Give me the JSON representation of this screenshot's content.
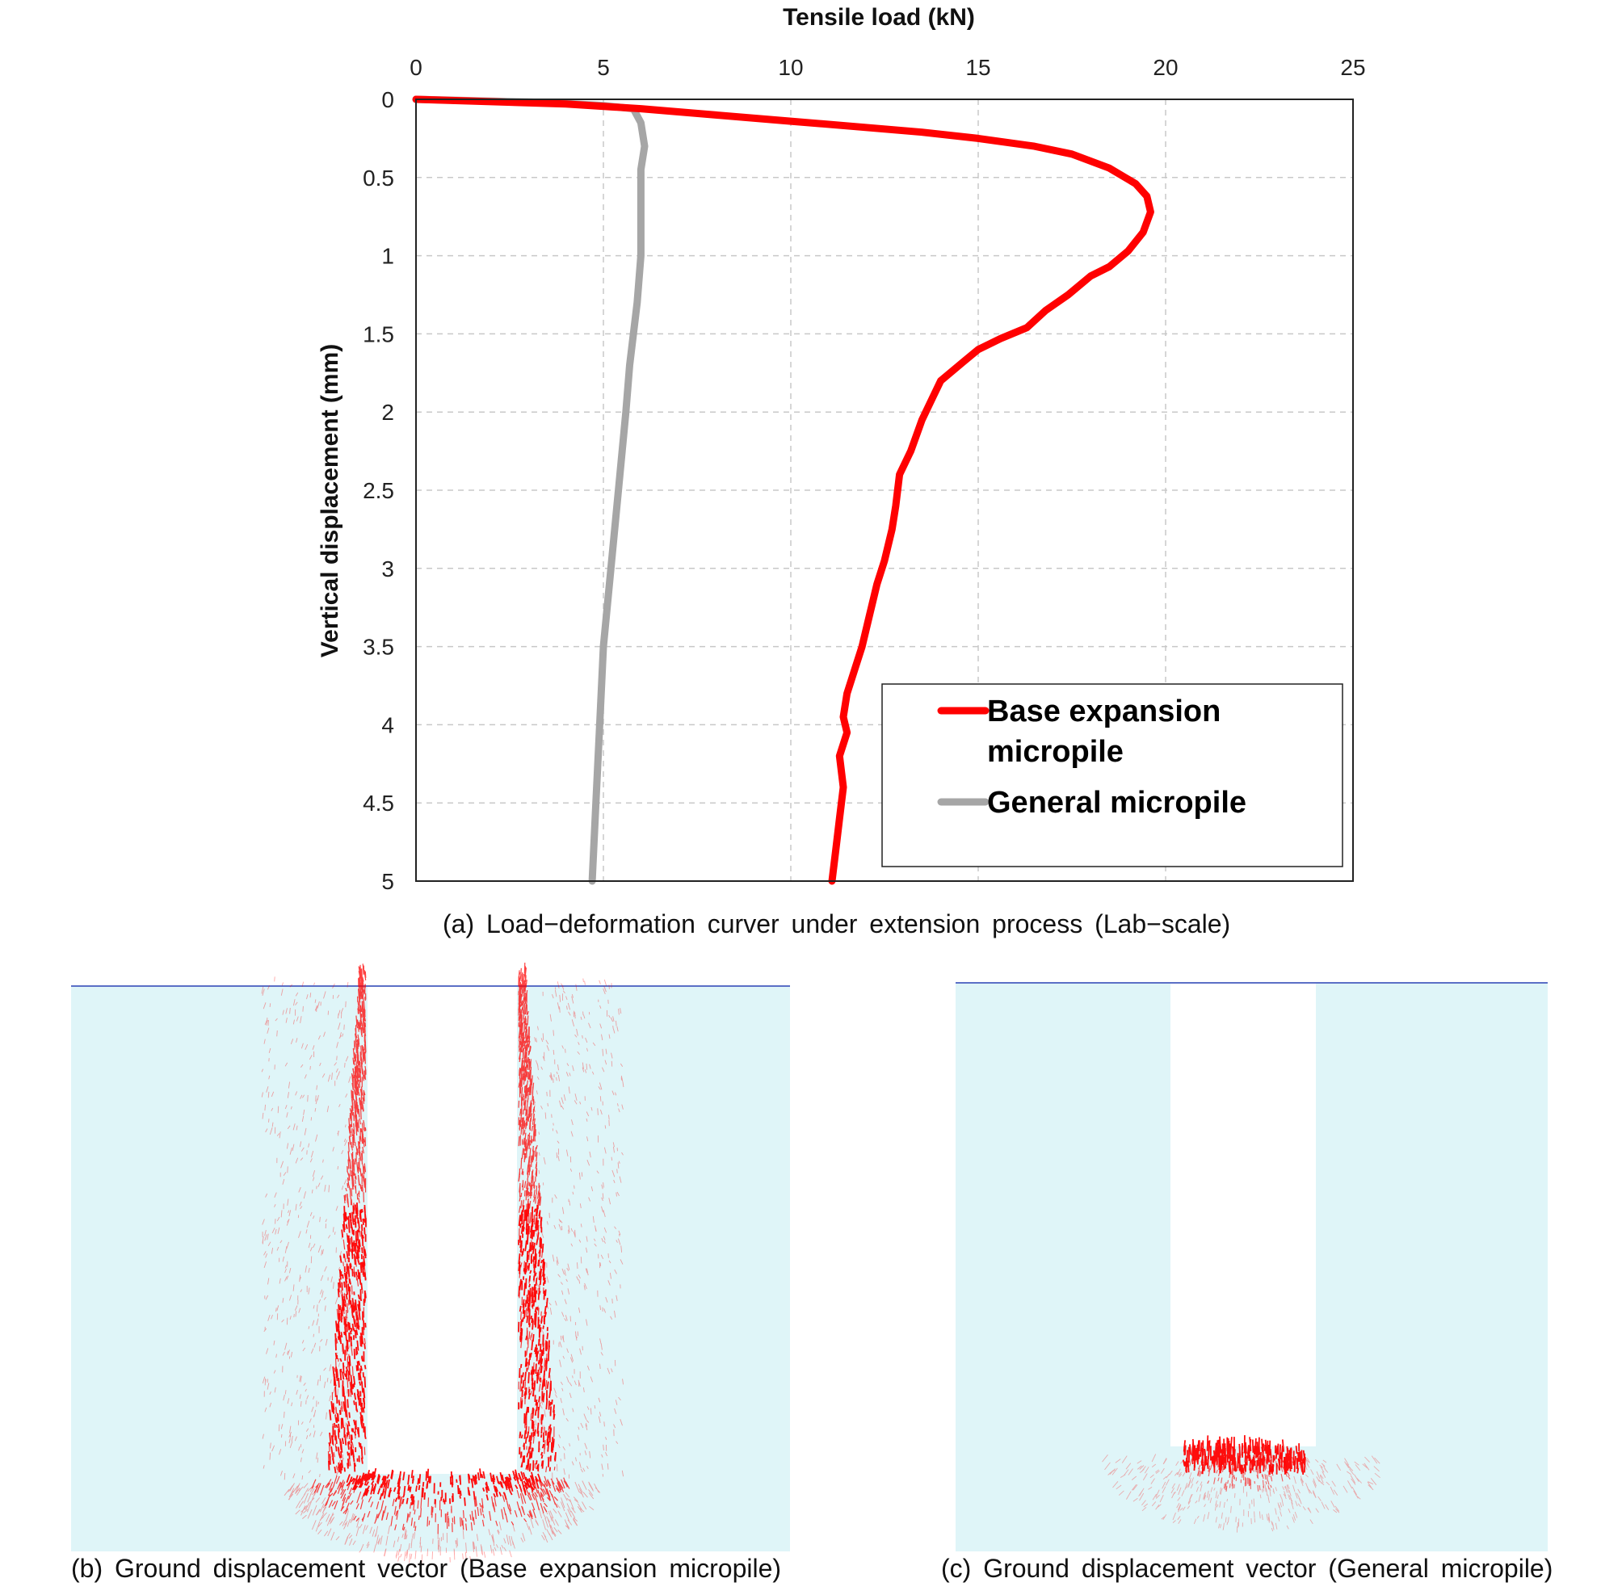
{
  "chart_data": {
    "type": "line",
    "title": "",
    "xlabel": "Tensile load (kN)",
    "ylabel": "Vertical displacement (mm)",
    "xlim": [
      0,
      25
    ],
    "ylim": [
      0,
      5
    ],
    "y_inverted": true,
    "x_axis_position": "top",
    "x_ticks": [
      0,
      5,
      10,
      15,
      20,
      25
    ],
    "y_ticks": [
      0,
      0.5,
      1,
      1.5,
      2,
      2.5,
      3,
      3.5,
      4,
      4.5,
      5
    ],
    "grid": true,
    "legend": "bottom-right",
    "series": [
      {
        "name": "Base expansion micropile",
        "color": "#ff0000",
        "points": [
          [
            0,
            0
          ],
          [
            4,
            0.03
          ],
          [
            6,
            0.06
          ],
          [
            8,
            0.1
          ],
          [
            10,
            0.14
          ],
          [
            12,
            0.18
          ],
          [
            13.5,
            0.21
          ],
          [
            15,
            0.25
          ],
          [
            16.5,
            0.3
          ],
          [
            17.5,
            0.35
          ],
          [
            18.5,
            0.44
          ],
          [
            19.2,
            0.54
          ],
          [
            19.5,
            0.62
          ],
          [
            19.6,
            0.72
          ],
          [
            19.4,
            0.85
          ],
          [
            19.0,
            0.97
          ],
          [
            18.5,
            1.07
          ],
          [
            18.0,
            1.13
          ],
          [
            17.4,
            1.25
          ],
          [
            16.8,
            1.35
          ],
          [
            16.3,
            1.46
          ],
          [
            15.6,
            1.53
          ],
          [
            15.0,
            1.6
          ],
          [
            14.6,
            1.68
          ],
          [
            14.0,
            1.8
          ],
          [
            13.8,
            1.9
          ],
          [
            13.5,
            2.05
          ],
          [
            13.2,
            2.25
          ],
          [
            12.9,
            2.4
          ],
          [
            12.8,
            2.6
          ],
          [
            12.7,
            2.75
          ],
          [
            12.5,
            2.95
          ],
          [
            12.3,
            3.1
          ],
          [
            12.1,
            3.3
          ],
          [
            11.9,
            3.5
          ],
          [
            11.7,
            3.65
          ],
          [
            11.5,
            3.8
          ],
          [
            11.4,
            3.95
          ],
          [
            11.5,
            4.05
          ],
          [
            11.3,
            4.2
          ],
          [
            11.4,
            4.4
          ],
          [
            11.3,
            4.6
          ],
          [
            11.2,
            4.8
          ],
          [
            11.1,
            5.0
          ]
        ]
      },
      {
        "name": "General micropile",
        "color": "#a6a6a6",
        "points": [
          [
            0,
            0
          ],
          [
            3.5,
            0.02
          ],
          [
            5,
            0.04
          ],
          [
            5.8,
            0.06
          ],
          [
            6.0,
            0.15
          ],
          [
            6.1,
            0.3
          ],
          [
            6.0,
            0.45
          ],
          [
            6.0,
            0.7
          ],
          [
            6.0,
            1.0
          ],
          [
            5.9,
            1.3
          ],
          [
            5.7,
            1.7
          ],
          [
            5.6,
            2.0
          ],
          [
            5.4,
            2.5
          ],
          [
            5.2,
            3.0
          ],
          [
            5.0,
            3.5
          ],
          [
            4.9,
            4.0
          ],
          [
            4.8,
            4.5
          ],
          [
            4.7,
            5.0
          ]
        ]
      }
    ]
  },
  "captions": {
    "a": "(a) Load−deformation curver under extension process (Lab−scale)",
    "b": "(b) Ground displacement vector (Base expansion micropile)",
    "c": "(c) Ground displacement vector (General micropile)"
  },
  "colors": {
    "ground": "#dff5f8",
    "vectors": "#ff0000",
    "surface_line": "#5b6fc6"
  }
}
